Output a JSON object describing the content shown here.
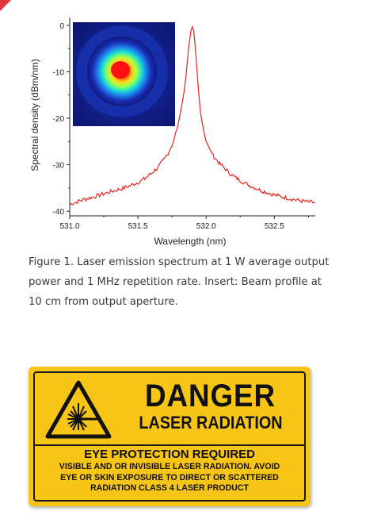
{
  "chart_data": {
    "type": "line",
    "title": "",
    "xlabel": "Wavelength (nm)",
    "ylabel": "Spectral density (dBm/nm)",
    "xlim": [
      531.0,
      532.8
    ],
    "ylim": [
      -41,
      1
    ],
    "xticks": [
      "531.0",
      "531.5",
      "532.0",
      "532.5"
    ],
    "xtick_values": [
      531.0,
      531.5,
      532.0,
      532.5
    ],
    "yticks": [
      "0",
      "-10",
      "-20",
      "-30",
      "-40"
    ],
    "ytick_values": [
      0,
      -10,
      -20,
      -30,
      -40
    ],
    "grid": false,
    "series": [
      {
        "color": "#e8231e",
        "x": [
          531.0,
          531.1,
          531.2,
          531.3,
          531.4,
          531.5,
          531.55,
          531.6,
          531.65,
          531.7,
          531.73,
          531.76,
          531.78,
          531.8,
          531.82,
          531.84,
          531.85,
          531.86,
          531.87,
          531.88,
          531.89,
          531.9,
          531.91,
          531.92,
          531.93,
          531.94,
          531.95,
          531.96,
          531.98,
          532.0,
          532.05,
          532.1,
          532.15,
          532.2,
          532.3,
          532.4,
          532.5,
          532.6,
          532.7,
          532.8
        ],
        "y": [
          -38.5,
          -37.5,
          -36.7,
          -35.8,
          -35.0,
          -33.8,
          -33.0,
          -31.8,
          -30.5,
          -28.5,
          -27.0,
          -25.0,
          -23.0,
          -20.5,
          -17.5,
          -14.0,
          -11.5,
          -8.5,
          -5.5,
          -3.0,
          -1.0,
          -0.3,
          -1.5,
          -4.5,
          -8.5,
          -12.5,
          -16.0,
          -19.0,
          -22.5,
          -25.0,
          -28.0,
          -29.8,
          -31.2,
          -32.5,
          -34.2,
          -35.5,
          -36.5,
          -37.2,
          -37.8,
          -38.2
        ]
      }
    ],
    "inset": "Beam profile heatmap"
  },
  "caption": "Figure 1. Laser emission spectrum at 1 W average output power and 1 MHz repetition rate. Insert: Beam profile at 10 cm from output aperture.",
  "sign": {
    "danger": "DANGER",
    "laser_radiation": "LASER RADIATION",
    "eye_protection": "EYE PROTECTION REQUIRED",
    "body_lines": [
      "VISIBLE AND OR INVISIBLE LASER RADIATION. AVOID",
      "EYE OR SKIN EXPOSURE TO DIRECT OR SCATTERED",
      "RADIATION CLASS 4 LASER PRODUCT"
    ],
    "background_color": "#f6c516",
    "symbol": "laser-warning-triangle-icon"
  }
}
